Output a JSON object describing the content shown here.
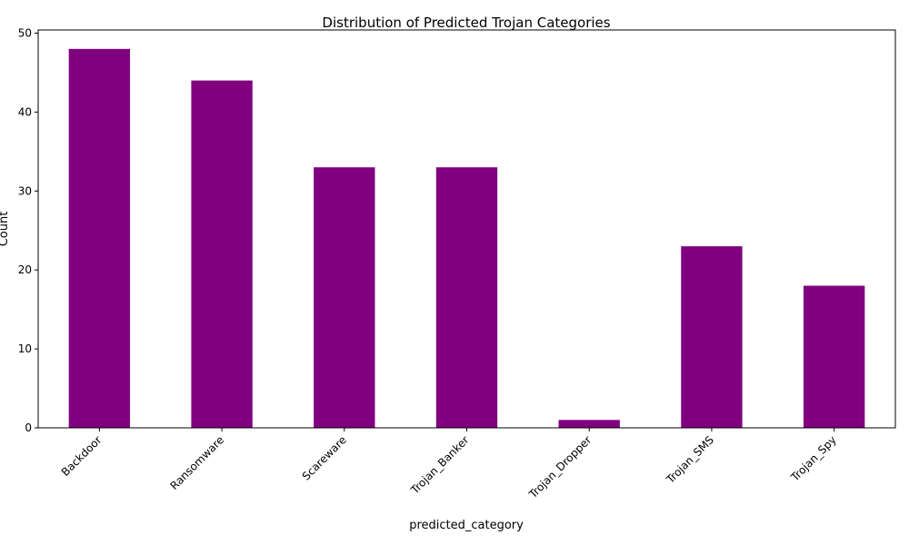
{
  "chart_data": {
    "type": "bar",
    "title": "Distribution of Predicted Trojan Categories",
    "xlabel": "predicted_category",
    "ylabel": "Count",
    "categories": [
      "Backdoor",
      "Ransomware",
      "Scareware",
      "Trojan_Banker",
      "Trojan_Dropper",
      "Trojan_SMS",
      "Trojan_Spy"
    ],
    "values": [
      48,
      44,
      33,
      33,
      1,
      23,
      18
    ],
    "ylim": [
      0,
      50
    ],
    "yticks": [
      0,
      10,
      20,
      30,
      40,
      50
    ],
    "bar_color": "#800080",
    "grid": false
  }
}
